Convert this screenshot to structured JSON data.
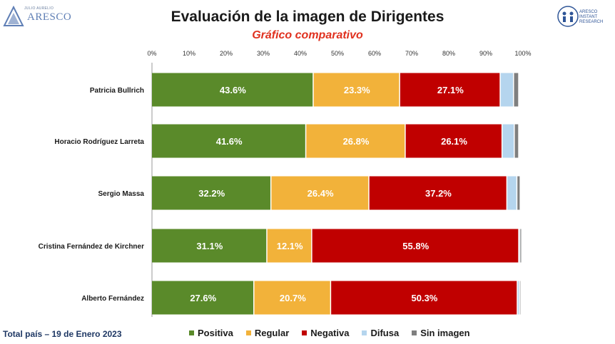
{
  "header": {
    "title": "Evaluación de la imagen de Dirigentes",
    "subtitle": "Gráfico comparativo"
  },
  "logos": {
    "left_tagline": "JULIO AURELIO",
    "left_brand": "ARESCO",
    "right_lines": [
      "ARESCO",
      "INSTANT",
      "RESEARCH"
    ]
  },
  "footer": {
    "text": "Total país – 19 de Enero 2023"
  },
  "chart_data": {
    "type": "bar",
    "orientation": "horizontal",
    "stacked": true,
    "categories": [
      "Patricia Bullrich",
      "Horacio Rodríguez Larreta",
      "Sergio Massa",
      "Cristina Fernández de Kirchner",
      "Alberto Fernández"
    ],
    "series": [
      {
        "name": "Positiva",
        "color": "#5a8a2a",
        "values": [
          43.6,
          41.6,
          32.2,
          31.1,
          27.6
        ],
        "labels": [
          "43.6%",
          "41.6%",
          "32.2%",
          "31.1%",
          "27.6%"
        ]
      },
      {
        "name": "Regular",
        "color": "#f2b23a",
        "values": [
          23.3,
          26.8,
          26.4,
          12.1,
          20.7
        ],
        "labels": [
          "23.3%",
          "26.8%",
          "26.4%",
          "12.1%",
          "20.7%"
        ]
      },
      {
        "name": "Negativa",
        "color": "#c00000",
        "values": [
          27.1,
          26.1,
          37.2,
          55.8,
          50.3
        ],
        "labels": [
          "27.1%",
          "26.1%",
          "37.2%",
          "55.8%",
          "50.3%"
        ]
      },
      {
        "name": "Difusa",
        "color": "#b5d5ee",
        "values": [
          3.6,
          3.3,
          2.7,
          0.3,
          0.6
        ],
        "labels": [
          "",
          "",
          "",
          "",
          ""
        ]
      },
      {
        "name": "Sin imagen",
        "color": "#7f7f7f",
        "values": [
          1.4,
          1.2,
          0.9,
          0.5,
          0.2
        ],
        "labels": [
          "",
          "",
          "",
          "",
          ""
        ]
      }
    ],
    "xlim": [
      0,
      100
    ],
    "xticks": [
      "0%",
      "10%",
      "20%",
      "30%",
      "40%",
      "50%",
      "60%",
      "70%",
      "80%",
      "90%",
      "100%"
    ],
    "legend": "bottom",
    "grid": false
  }
}
